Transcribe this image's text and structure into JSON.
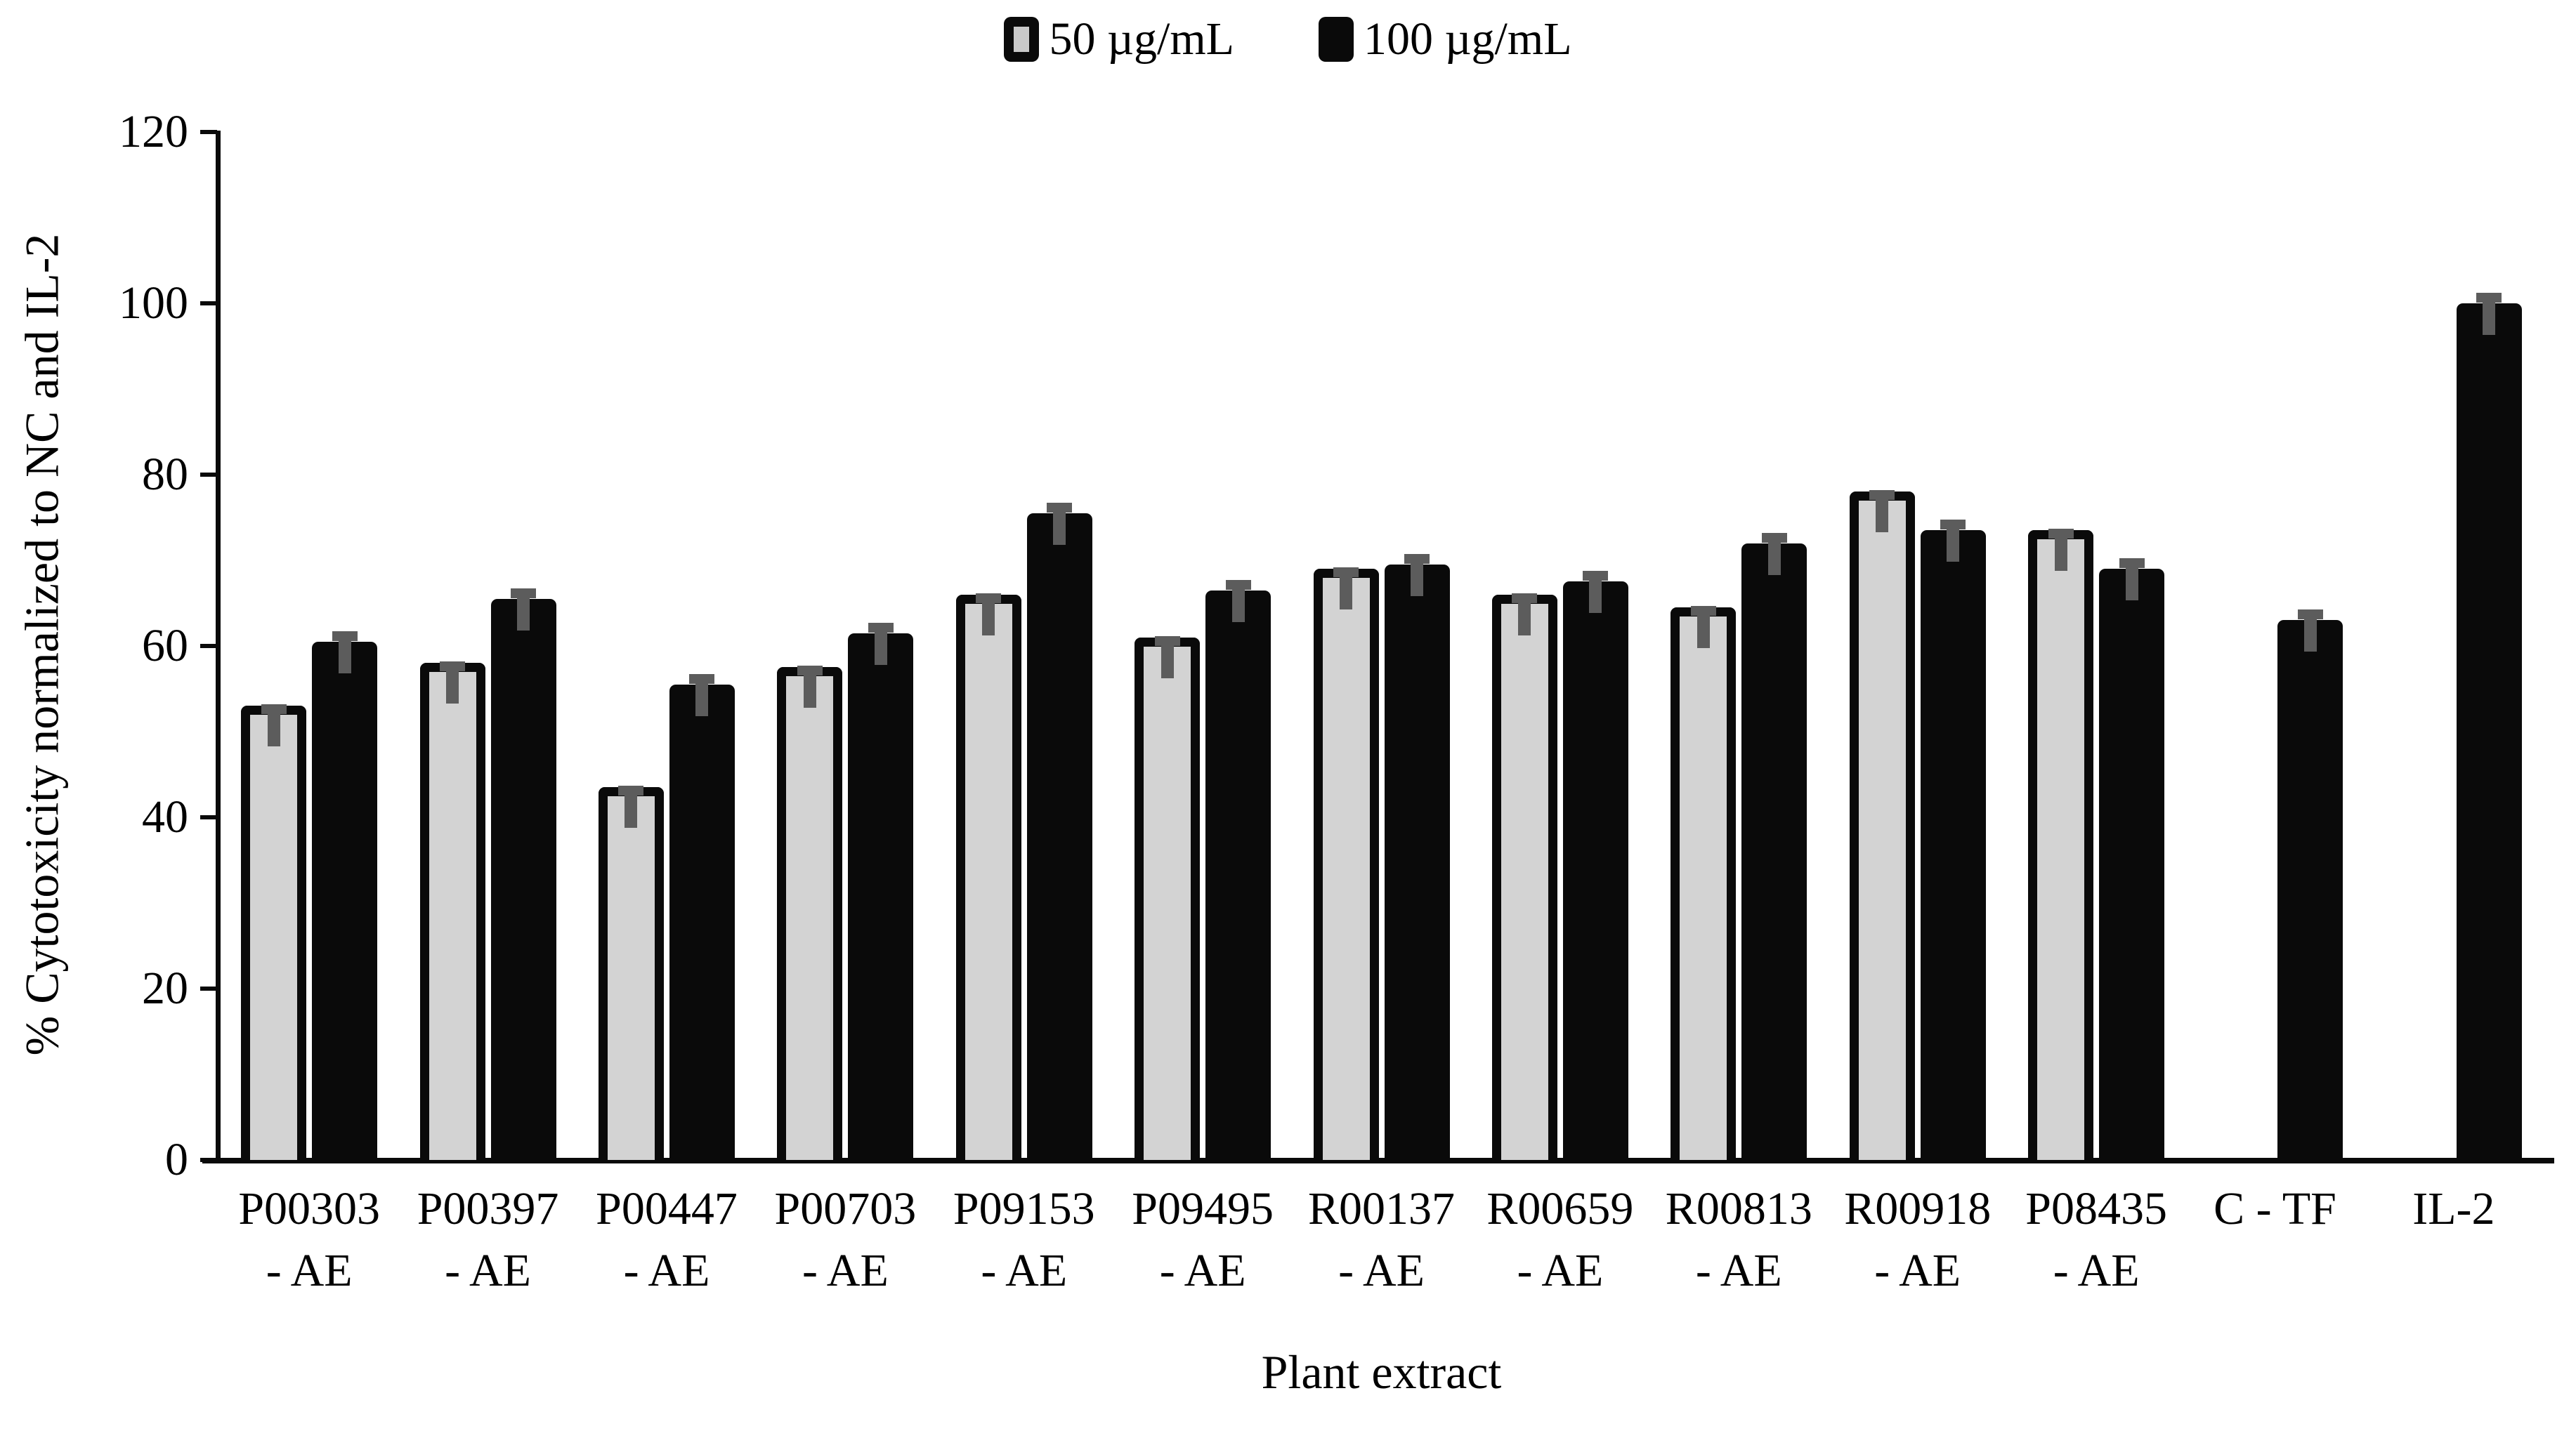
{
  "legend": {
    "items": [
      {
        "label": "50 µg/mL",
        "marker": "gray-bordered-square"
      },
      {
        "label": "100 µg/mL",
        "marker": "black-square"
      }
    ]
  },
  "y_axis": {
    "title": "% Cytotoxicity normalized to NC and IL-2",
    "ticks": [
      0,
      20,
      40,
      60,
      80,
      100,
      120
    ]
  },
  "x_axis": {
    "title": "Plant extract"
  },
  "chart_data": {
    "type": "bar",
    "title": "",
    "xlabel": "Plant extract",
    "ylabel": "% Cytotoxicity normalized to NC and IL-2",
    "ylim": [
      0,
      120
    ],
    "grid": false,
    "legend_position": "top-center",
    "categories": [
      "P00303 - AE",
      "P00397 - AE",
      "P00447 - AE",
      "P00703 - AE",
      "P09153 - AE",
      "P09495 - AE",
      "R00137 - AE",
      "R00659 - AE",
      "R00813 - AE",
      "R00918 - AE",
      "P08435 - AE",
      "C - TF",
      "IL-2"
    ],
    "category_label_lines": [
      [
        "P00303",
        "- AE"
      ],
      [
        "P00397",
        "- AE"
      ],
      [
        "P00447",
        "- AE"
      ],
      [
        "P00703",
        "- AE"
      ],
      [
        "P09153",
        "- AE"
      ],
      [
        "P09495",
        "- AE"
      ],
      [
        "R00137",
        "- AE"
      ],
      [
        "R00659",
        "- AE"
      ],
      [
        "R00813",
        "- AE"
      ],
      [
        "R00918",
        "- AE"
      ],
      [
        "P08435",
        "- AE"
      ],
      [
        "C - TF"
      ],
      [
        "IL-2"
      ]
    ],
    "series": [
      {
        "name": "50 µg/mL",
        "fill": "#d3d3d3",
        "border": "#0a0a0a",
        "values": [
          53,
          58,
          43.5,
          57.5,
          66,
          61,
          69,
          66,
          64.5,
          78,
          73.5,
          null,
          null
        ],
        "errors": [
          1,
          1,
          1,
          1,
          1,
          1,
          1,
          1,
          1,
          1,
          1,
          null,
          null
        ]
      },
      {
        "name": "100 µg/mL",
        "fill": "#0a0a0a",
        "border": "#0a0a0a",
        "values": [
          60.5,
          65.5,
          55.5,
          61.5,
          75.5,
          66.5,
          69.5,
          67.5,
          72,
          73.5,
          69,
          63,
          100
        ],
        "errors": [
          1,
          1,
          1,
          1,
          1.2,
          1,
          1,
          1,
          1,
          1.2,
          1,
          1,
          1
        ]
      }
    ],
    "error_bar_color": "#5c5c5c"
  }
}
